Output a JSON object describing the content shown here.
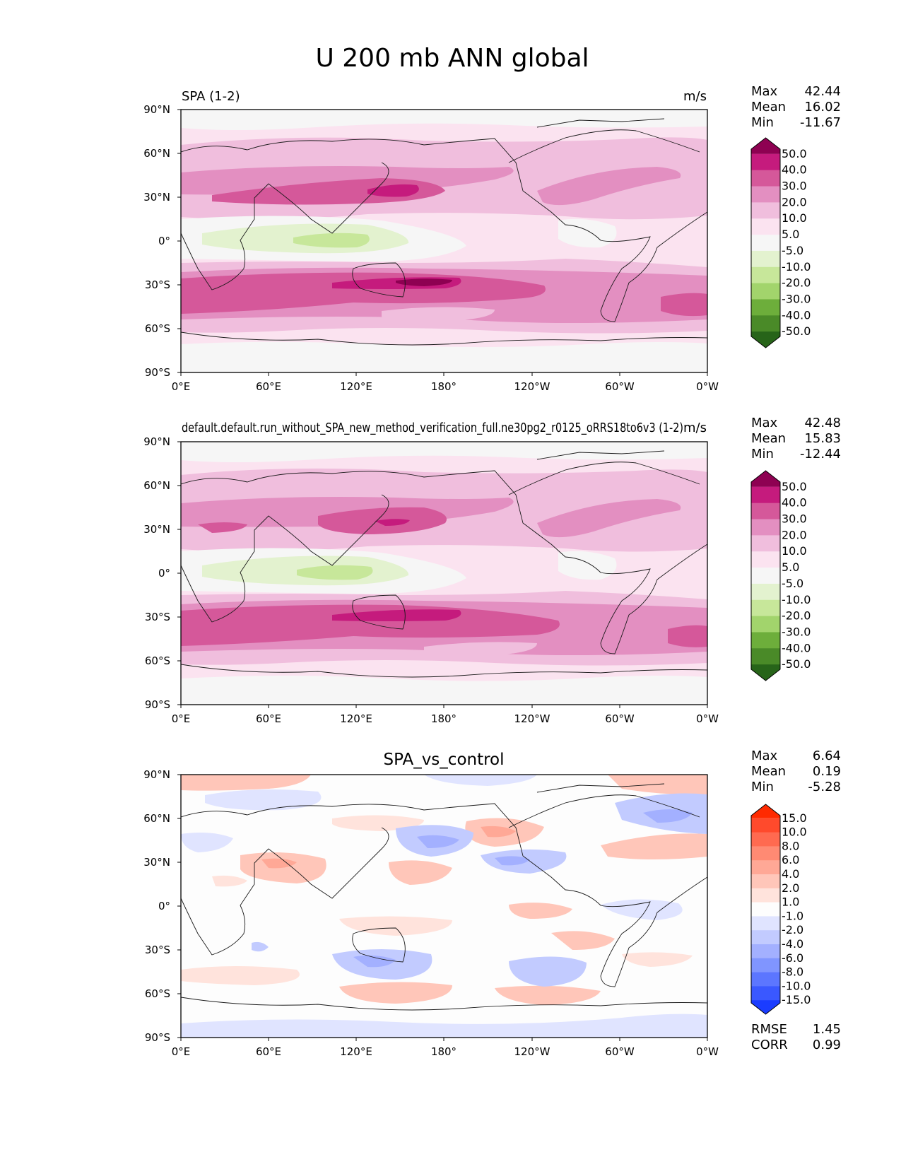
{
  "figure": {
    "title": "U 200 mb ANN global"
  },
  "axes": {
    "lat_ticks": [
      "90°N",
      "60°N",
      "30°N",
      "0°",
      "30°S",
      "60°S",
      "90°S"
    ],
    "lon_ticks": [
      "0°E",
      "60°E",
      "120°E",
      "180°",
      "120°W",
      "60°W",
      "0°W"
    ]
  },
  "chart_data": [
    {
      "type": "heatmap",
      "title": "",
      "left_title": "SPA (1-2)",
      "right_title": "m/s",
      "stats": {
        "labels": [
          "Max",
          "Mean",
          "Min"
        ],
        "values": [
          "42.44",
          "16.02",
          "-11.67"
        ]
      },
      "colorbar": {
        "levels": [
          "50.0",
          "40.0",
          "30.0",
          "20.0",
          "10.0",
          "5.0",
          "-5.0",
          "-10.0",
          "-20.0",
          "-30.0",
          "-40.0",
          "-50.0"
        ],
        "colors": [
          "#8e0152",
          "#c51b7d",
          "#d5589a",
          "#e38fc1",
          "#f0bedd",
          "#fbe3f0",
          "#f6f6f6",
          "#e3f2cf",
          "#c7e79a",
          "#a2d46c",
          "#6dae3b",
          "#4a8a28",
          "#276419"
        ]
      },
      "map": "ann_u200_model"
    },
    {
      "type": "heatmap",
      "title": "",
      "left_title": "default.default.run_without_SPA_new_method_verification_full.ne30pg2_r0125_oRRS18to6v3 (1-2)",
      "right_title": "m/s",
      "stats": {
        "labels": [
          "Max",
          "Mean",
          "Min"
        ],
        "values": [
          "42.48",
          "15.83",
          "-12.44"
        ]
      },
      "colorbar": {
        "levels": [
          "50.0",
          "40.0",
          "30.0",
          "20.0",
          "10.0",
          "5.0",
          "-5.0",
          "-10.0",
          "-20.0",
          "-30.0",
          "-40.0",
          "-50.0"
        ],
        "colors": [
          "#8e0152",
          "#c51b7d",
          "#d5589a",
          "#e38fc1",
          "#f0bedd",
          "#fbe3f0",
          "#f6f6f6",
          "#e3f2cf",
          "#c7e79a",
          "#a2d46c",
          "#6dae3b",
          "#4a8a28",
          "#276419"
        ]
      },
      "map": "ann_u200_control"
    },
    {
      "type": "heatmap",
      "title": "SPA_vs_control",
      "left_title": "",
      "right_title": "",
      "stats": {
        "labels": [
          "Max",
          "Mean",
          "Min"
        ],
        "values": [
          "6.64",
          "0.19",
          "-5.28"
        ]
      },
      "metrics": {
        "labels": [
          "RMSE",
          "CORR"
        ],
        "values": [
          "1.45",
          "0.99"
        ]
      },
      "colorbar": {
        "levels": [
          "15.0",
          "10.0",
          "8.0",
          "6.0",
          "4.0",
          "2.0",
          "1.0",
          "-1.0",
          "-2.0",
          "-4.0",
          "-6.0",
          "-8.0",
          "-10.0",
          "-15.0"
        ],
        "colors": [
          "#ff2a00",
          "#ff4a2c",
          "#ff6a50",
          "#ff8a73",
          "#ffa896",
          "#ffc6b9",
          "#ffe3dc",
          "#fdfdfd",
          "#e0e4ff",
          "#c2cbff",
          "#a3b0ff",
          "#8095ff",
          "#5c76ff",
          "#3a58ff",
          "#1a3cff"
        ]
      },
      "map": "diff"
    }
  ]
}
